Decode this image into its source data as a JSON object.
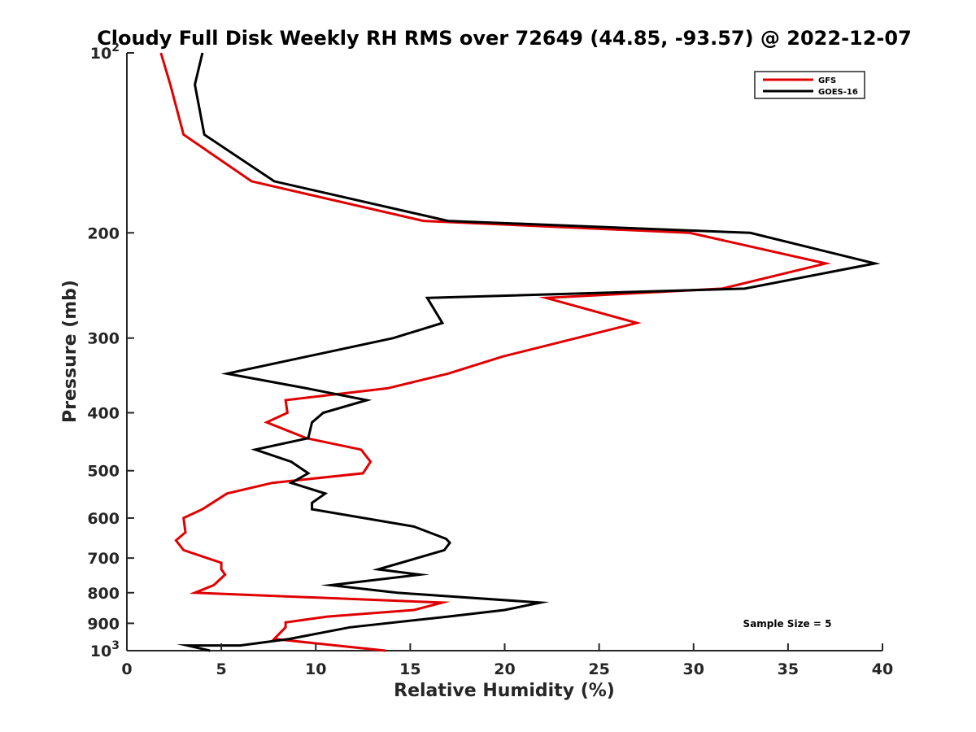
{
  "chart_data": {
    "type": "line",
    "title": "Cloudy Full Disk Weekly RH RMS over 72649 (44.85, -93.57) @ 2022-12-07",
    "xlabel": "Relative Humidity (%)",
    "ylabel": "Pressure (mb)",
    "xlim": [
      0,
      40
    ],
    "ylim": [
      100,
      1000
    ],
    "yscale": "log",
    "y_reversed": true,
    "x_ticks": [
      "0",
      "5",
      "10",
      "15",
      "20",
      "25",
      "30",
      "35",
      "40"
    ],
    "y_ticks": [
      {
        "value": 100,
        "label": "10",
        "sup": "2"
      },
      {
        "value": 200,
        "label": "200",
        "sup": ""
      },
      {
        "value": 300,
        "label": "300",
        "sup": ""
      },
      {
        "value": 400,
        "label": "400",
        "sup": ""
      },
      {
        "value": 500,
        "label": "500",
        "sup": ""
      },
      {
        "value": 600,
        "label": "600",
        "sup": ""
      },
      {
        "value": 700,
        "label": "700",
        "sup": ""
      },
      {
        "value": 800,
        "label": "800",
        "sup": ""
      },
      {
        "value": 900,
        "label": "900",
        "sup": ""
      },
      {
        "value": 1000,
        "label": "10",
        "sup": "3"
      }
    ],
    "grid": false,
    "legend_position": "top-right",
    "annotation": "Sample Size = 5",
    "series": [
      {
        "name": "GFS",
        "color": "#e00000",
        "x": [
          1.8,
          2.3,
          3.0,
          6.6,
          15.7,
          29.8,
          37.0,
          31.5,
          22.2,
          27.0,
          23.8,
          19.9,
          17.0,
          13.8,
          8.4,
          8.5,
          7.4,
          9.5,
          12.4,
          12.9,
          12.5,
          7.7,
          5.3,
          4.0,
          3.0,
          3.1,
          2.6,
          3.0,
          5.0,
          5.0,
          5.2,
          4.6,
          3.6,
          16.7,
          15.2,
          10.6,
          8.4,
          8.4,
          7.8,
          13.7
        ],
        "y": [
          100,
          113,
          137,
          164,
          191,
          200,
          225,
          248,
          257,
          283,
          300,
          322,
          344,
          364,
          381,
          400,
          415,
          441,
          461,
          483,
          505,
          524,
          546,
          580,
          600,
          634,
          654,
          679,
          713,
          731,
          746,
          777,
          800,
          831,
          855,
          877,
          897,
          914,
          956,
          1000
        ]
      },
      {
        "name": "GOES-16",
        "color": "#000000",
        "x": [
          4.0,
          3.6,
          4.1,
          7.8,
          17.0,
          33.0,
          39.6,
          32.7,
          15.9,
          16.7,
          14.1,
          5.3,
          9.5,
          12.7,
          10.4,
          9.8,
          9.6,
          6.8,
          8.7,
          9.6,
          8.7,
          10.5,
          9.8,
          9.8,
          15.2,
          16.9,
          17.1,
          16.8,
          14.5,
          13.3,
          15.5,
          10.8,
          14.3,
          21.9,
          20.0,
          17.0,
          11.8,
          8.6,
          6.0,
          3.2,
          4.4
        ],
        "y": [
          100,
          113,
          137,
          164,
          191,
          200,
          225,
          248,
          257,
          283,
          300,
          344,
          364,
          381,
          400,
          415,
          441,
          461,
          483,
          505,
          524,
          546,
          566,
          580,
          620,
          650,
          660,
          679,
          713,
          731,
          746,
          777,
          800,
          831,
          855,
          877,
          914,
          956,
          980,
          980,
          1000
        ]
      }
    ]
  }
}
